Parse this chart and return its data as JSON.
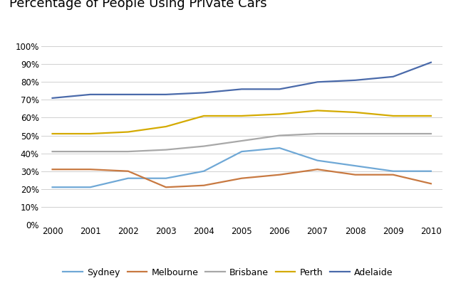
{
  "title": "Percentage of People Using Private Cars",
  "years": [
    2000,
    2001,
    2002,
    2003,
    2004,
    2005,
    2006,
    2007,
    2008,
    2009,
    2010
  ],
  "series": {
    "Sydney": [
      0.21,
      0.21,
      0.26,
      0.26,
      0.3,
      0.41,
      0.43,
      0.36,
      0.33,
      0.3,
      0.3
    ],
    "Melbourne": [
      0.31,
      0.31,
      0.3,
      0.21,
      0.22,
      0.26,
      0.28,
      0.31,
      0.28,
      0.28,
      0.23
    ],
    "Brisbane": [
      0.41,
      0.41,
      0.41,
      0.42,
      0.44,
      0.47,
      0.5,
      0.51,
      0.51,
      0.51,
      0.51
    ],
    "Perth": [
      0.51,
      0.51,
      0.52,
      0.55,
      0.61,
      0.61,
      0.62,
      0.64,
      0.63,
      0.61,
      0.61
    ],
    "Adelaide": [
      0.71,
      0.73,
      0.73,
      0.73,
      0.74,
      0.76,
      0.76,
      0.8,
      0.81,
      0.83,
      0.91
    ]
  },
  "colors": {
    "Sydney": "#6fa8d6",
    "Melbourne": "#c87941",
    "Brisbane": "#a8a8a8",
    "Perth": "#d4aa00",
    "Adelaide": "#4a6aaa"
  },
  "ylim": [
    0,
    1.05
  ],
  "yticks": [
    0.0,
    0.1,
    0.2,
    0.3,
    0.4,
    0.5,
    0.6,
    0.7,
    0.8,
    0.9,
    1.0
  ],
  "ytick_labels": [
    "0%",
    "10%",
    "20%",
    "30%",
    "40%",
    "50%",
    "60%",
    "70%",
    "80%",
    "90%",
    "100%"
  ],
  "background_color": "#ffffff",
  "title_fontsize": 13,
  "legend_order": [
    "Sydney",
    "Melbourne",
    "Brisbane",
    "Perth",
    "Adelaide"
  ]
}
